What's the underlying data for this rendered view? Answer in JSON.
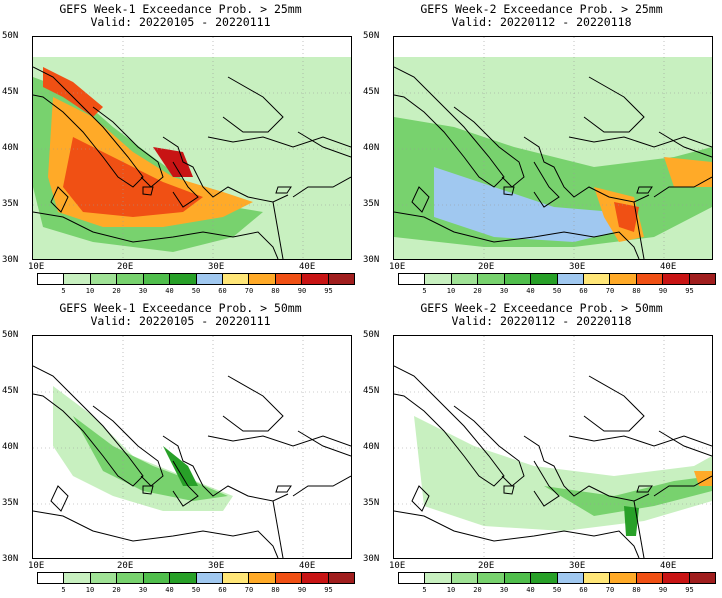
{
  "panels": [
    {
      "title": "GEFS Week-1 Exceedance Prob. > 25mm",
      "valid": "Valid: 20220105 - 20220111"
    },
    {
      "title": "GEFS Week-2 Exceedance Prob. > 25mm",
      "valid": "Valid: 20220112 - 20220118"
    },
    {
      "title": "GEFS Week-1 Exceedance Prob. > 50mm",
      "valid": "Valid: 20220105 - 20220111"
    },
    {
      "title": "GEFS Week-2 Exceedance Prob. > 50mm",
      "valid": "Valid: 20220112 - 20220118"
    }
  ],
  "lat_labels": [
    "50N",
    "45N",
    "40N",
    "35N",
    "30N"
  ],
  "lon_labels": [
    "10E",
    "20E",
    "30E",
    "40E"
  ],
  "colorbar": {
    "labels": [
      "5",
      "10",
      "20",
      "30",
      "40",
      "50",
      "60",
      "70",
      "80",
      "90",
      "95"
    ],
    "colors": [
      "#ffffff",
      "#c8f0c0",
      "#a0e296",
      "#78d26e",
      "#50be4c",
      "#28a028",
      "#a0c8f0",
      "#ffe678",
      "#ffaa28",
      "#f05014",
      "#c81414",
      "#a01e1e"
    ]
  },
  "colors": {
    "land_light": "#c8f0c0",
    "green_mid": "#78d26e",
    "green_dark": "#28a028",
    "blue": "#a0c8f0",
    "yellow": "#ffe678",
    "orange": "#ffaa28",
    "red": "#f05014",
    "darkred": "#c81414"
  }
}
